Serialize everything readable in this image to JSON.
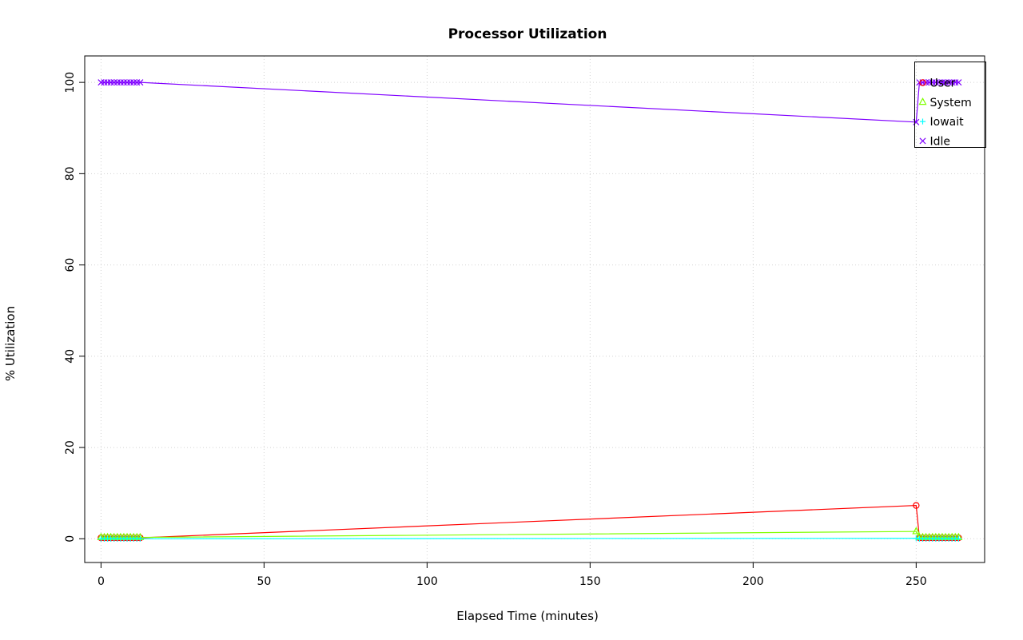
{
  "chart_data": {
    "type": "line",
    "title": "Processor Utilization",
    "xlabel": "Elapsed Time (minutes)",
    "ylabel": "% Utilization",
    "xlim": [
      0,
      263
    ],
    "ylim": [
      0,
      100
    ],
    "xticks": [
      0,
      50,
      100,
      150,
      200,
      250
    ],
    "yticks": [
      0,
      20,
      40,
      60,
      80,
      100
    ],
    "grid": "dotted",
    "grid_color": "#d3d3d3",
    "background": "#ffffff",
    "legend_position": "top-right",
    "legend_entries": [
      "User",
      "System",
      "Iowait",
      "Idle"
    ],
    "series": [
      {
        "name": "User",
        "color": "#ff0000",
        "marker": "circle",
        "x": [
          0,
          1,
          2,
          3,
          4,
          5,
          6,
          7,
          8,
          9,
          10,
          11,
          12,
          250,
          251,
          252,
          253,
          254,
          255,
          256,
          257,
          258,
          259,
          260,
          261,
          262,
          263
        ],
        "y": [
          0.2,
          0.2,
          0.2,
          0.2,
          0.2,
          0.2,
          0.2,
          0.2,
          0.2,
          0.2,
          0.2,
          0.2,
          0.2,
          7.3,
          0.2,
          0.2,
          0.2,
          0.2,
          0.2,
          0.2,
          0.2,
          0.2,
          0.2,
          0.2,
          0.2,
          0.2,
          0.2
        ]
      },
      {
        "name": "System",
        "color": "#80ff00",
        "marker": "triangle",
        "x": [
          0,
          1,
          2,
          3,
          4,
          5,
          6,
          7,
          8,
          9,
          10,
          11,
          12,
          250,
          251,
          252,
          253,
          254,
          255,
          256,
          257,
          258,
          259,
          260,
          261,
          262,
          263
        ],
        "y": [
          0.3,
          0.3,
          0.3,
          0.3,
          0.3,
          0.3,
          0.3,
          0.3,
          0.3,
          0.3,
          0.3,
          0.3,
          0.3,
          1.6,
          0.3,
          0.3,
          0.3,
          0.3,
          0.3,
          0.3,
          0.3,
          0.3,
          0.3,
          0.3,
          0.3,
          0.3,
          0.3
        ]
      },
      {
        "name": "Iowait",
        "color": "#00ffff",
        "marker": "plus",
        "x": [
          0,
          1,
          2,
          3,
          4,
          5,
          6,
          7,
          8,
          9,
          10,
          11,
          12,
          250,
          251,
          252,
          253,
          254,
          255,
          256,
          257,
          258,
          259,
          260,
          261,
          262,
          263
        ],
        "y": [
          0,
          0,
          0,
          0,
          0,
          0,
          0,
          0,
          0,
          0,
          0,
          0,
          0,
          0.1,
          0,
          0,
          0,
          0,
          0,
          0,
          0,
          0,
          0,
          0,
          0,
          0,
          0
        ]
      },
      {
        "name": "Idle",
        "color": "#8000ff",
        "marker": "x",
        "x": [
          0,
          1,
          2,
          3,
          4,
          5,
          6,
          7,
          8,
          9,
          10,
          11,
          12,
          250,
          251,
          252,
          253,
          254,
          255,
          256,
          257,
          258,
          259,
          260,
          261,
          262,
          263
        ],
        "y": [
          100,
          100,
          100,
          100,
          100,
          100,
          100,
          100,
          100,
          100,
          100,
          100,
          100,
          91.3,
          100,
          100,
          100,
          100,
          100,
          100,
          100,
          100,
          100,
          100,
          100,
          100,
          100
        ]
      }
    ]
  }
}
